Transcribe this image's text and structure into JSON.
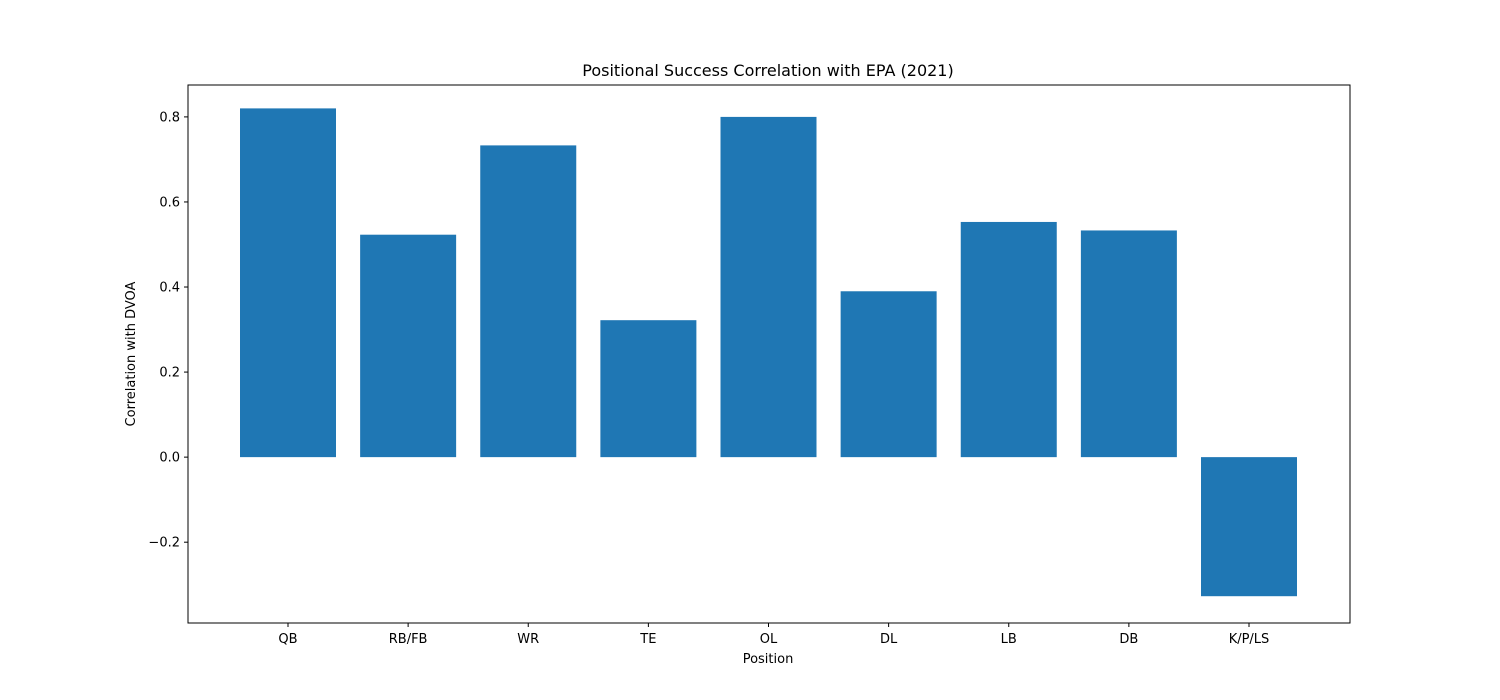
{
  "chart_data": {
    "type": "bar",
    "title": "Positional Success Correlation with EPA (2021)",
    "xlabel": "Position",
    "ylabel": "Correlation with DVOA",
    "categories": [
      "QB",
      "RB/FB",
      "WR",
      "TE",
      "OL",
      "DL",
      "LB",
      "DB",
      "K/P/LS"
    ],
    "values": [
      0.82,
      0.523,
      0.733,
      0.322,
      0.8,
      0.39,
      0.553,
      0.533,
      -0.327
    ],
    "ylim": [
      -0.39,
      0.875
    ],
    "yticks": [
      -0.2,
      0.0,
      0.2,
      0.4,
      0.6,
      0.8
    ],
    "ytick_labels": [
      "−0.2",
      "0.0",
      "0.2",
      "0.4",
      "0.6",
      "0.8"
    ],
    "bar_color": "#1f77b4",
    "grid": false,
    "legend": "none"
  }
}
